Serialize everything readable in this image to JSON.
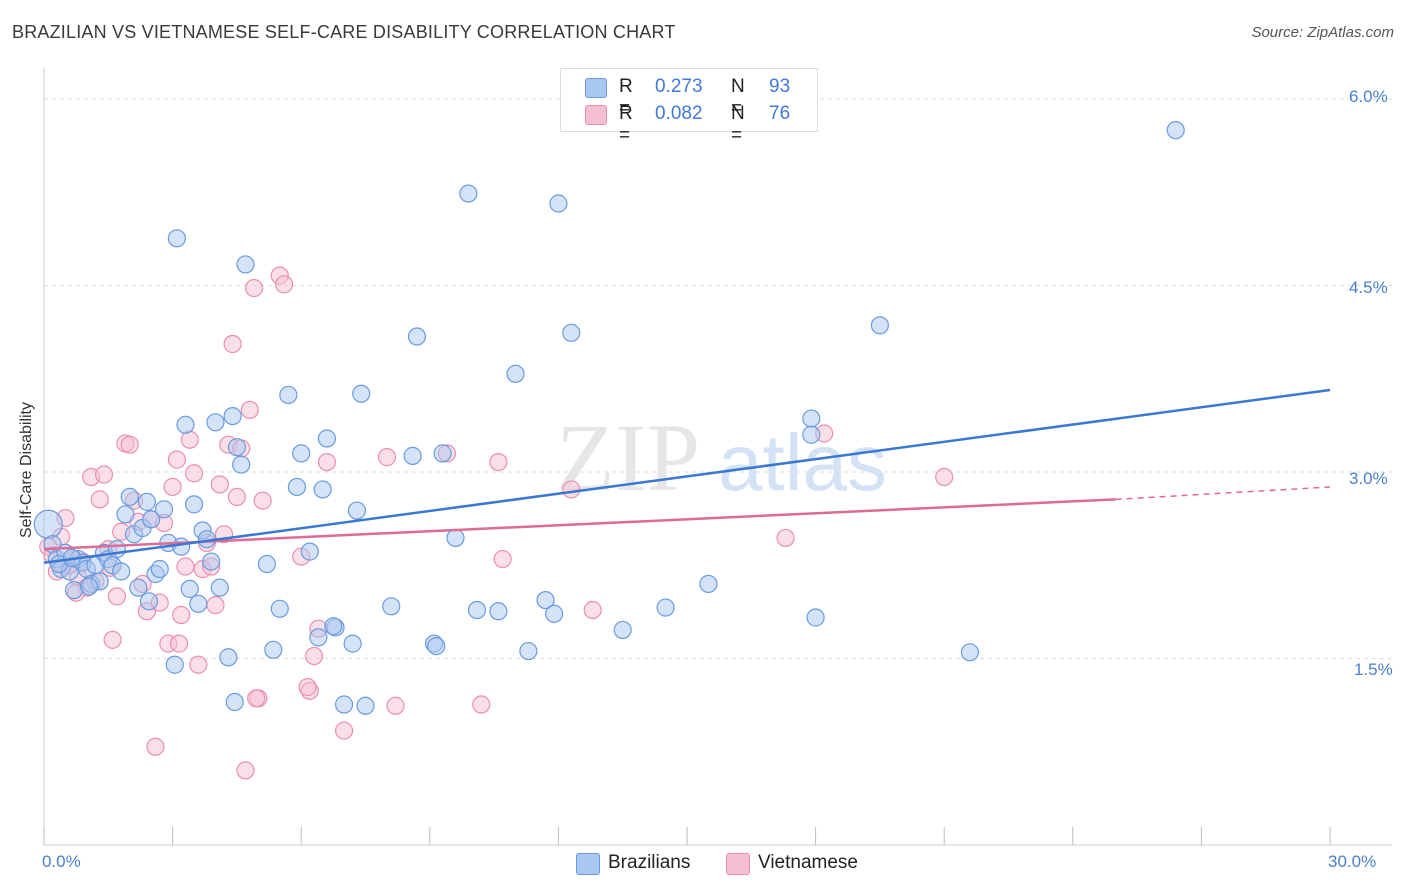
{
  "title": "BRAZILIAN VS VIETNAMESE SELF-CARE DISABILITY CORRELATION CHART",
  "source": "Source: ZipAtlas.com",
  "watermark": {
    "zip": "ZIP",
    "atlas": "atlas"
  },
  "legend": {
    "r_label": "R =",
    "n_label": "N =",
    "brazilians": {
      "r": "0.273",
      "n": "93"
    },
    "vietnamese": {
      "r": "0.082",
      "n": "76"
    }
  },
  "colors": {
    "blue_fill": "#a9c8f0",
    "blue_stroke": "#6a9be0",
    "blue_line": "#3a78d4",
    "pink_fill": "#f6bfd1",
    "pink_stroke": "#eb8fae",
    "pink_line": "#e06a96",
    "axis_text": "#4a7fd0",
    "grid": "#dddddd"
  },
  "chart_data": {
    "type": "scatter",
    "title": "BRAZILIAN VS VIETNAMESE SELF-CARE DISABILITY CORRELATION CHART",
    "xlabel": "",
    "ylabel": "Self-Care Disability",
    "xlim": [
      0,
      30
    ],
    "ylim": [
      0,
      6.25
    ],
    "x_tick_labels": [
      "0.0%",
      "30.0%"
    ],
    "y_ticks": [
      1.5,
      3.0,
      4.5,
      6.0
    ],
    "y_tick_labels": [
      "1.5%",
      "3.0%",
      "4.5%",
      "6.0%"
    ],
    "grid": "horizontal dashed",
    "legend_position": "top-center",
    "series": [
      {
        "name": "Brazilians",
        "r": 0.273,
        "n": 93,
        "trend": {
          "x0": 0,
          "y0": 2.27,
          "x1": 30,
          "y1": 3.66
        },
        "points": [
          [
            0.1,
            2.58
          ],
          [
            0.2,
            2.42
          ],
          [
            0.3,
            2.3
          ],
          [
            0.4,
            2.22
          ],
          [
            0.5,
            2.35
          ],
          [
            0.6,
            2.2
          ],
          [
            0.7,
            2.05
          ],
          [
            0.8,
            2.3
          ],
          [
            0.9,
            2.27
          ],
          [
            1.0,
            2.22
          ],
          [
            1.1,
            2.1
          ],
          [
            1.2,
            2.25
          ],
          [
            1.3,
            2.12
          ],
          [
            1.4,
            2.35
          ],
          [
            1.5,
            2.3
          ],
          [
            1.6,
            2.25
          ],
          [
            1.7,
            2.38
          ],
          [
            1.8,
            2.2
          ],
          [
            1.9,
            2.66
          ],
          [
            2.0,
            2.8
          ],
          [
            2.1,
            2.5
          ],
          [
            2.2,
            2.07
          ],
          [
            2.3,
            2.55
          ],
          [
            2.4,
            2.76
          ],
          [
            2.5,
            2.62
          ],
          [
            2.6,
            2.18
          ],
          [
            2.7,
            2.22
          ],
          [
            2.8,
            2.7
          ],
          [
            2.9,
            2.43
          ],
          [
            3.1,
            4.88
          ],
          [
            3.2,
            2.4
          ],
          [
            3.3,
            3.38
          ],
          [
            3.4,
            2.06
          ],
          [
            3.5,
            2.74
          ],
          [
            3.6,
            1.94
          ],
          [
            3.7,
            2.53
          ],
          [
            3.8,
            2.46
          ],
          [
            3.9,
            2.28
          ],
          [
            4.0,
            3.4
          ],
          [
            4.1,
            2.07
          ],
          [
            4.3,
            1.51
          ],
          [
            4.4,
            3.45
          ],
          [
            4.5,
            3.2
          ],
          [
            4.6,
            3.06
          ],
          [
            4.7,
            4.67
          ],
          [
            5.2,
            2.26
          ],
          [
            5.5,
            1.9
          ],
          [
            5.7,
            3.62
          ],
          [
            5.9,
            2.88
          ],
          [
            6.0,
            3.15
          ],
          [
            6.2,
            2.36
          ],
          [
            6.4,
            1.67
          ],
          [
            6.5,
            2.86
          ],
          [
            6.6,
            3.27
          ],
          [
            6.8,
            1.75
          ],
          [
            7.0,
            1.13
          ],
          [
            7.2,
            1.62
          ],
          [
            7.3,
            2.69
          ],
          [
            7.4,
            3.63
          ],
          [
            7.5,
            1.12
          ],
          [
            8.1,
            1.92
          ],
          [
            8.6,
            3.13
          ],
          [
            8.7,
            4.09
          ],
          [
            9.1,
            1.62
          ],
          [
            9.3,
            3.15
          ],
          [
            9.6,
            2.47
          ],
          [
            9.9,
            5.24
          ],
          [
            10.1,
            1.89
          ],
          [
            10.6,
            1.88
          ],
          [
            11.0,
            3.79
          ],
          [
            11.3,
            1.56
          ],
          [
            11.7,
            1.97
          ],
          [
            11.9,
            1.86
          ],
          [
            12.0,
            5.16
          ],
          [
            12.3,
            4.12
          ],
          [
            13.5,
            1.73
          ],
          [
            14.5,
            1.91
          ],
          [
            15.5,
            2.1
          ],
          [
            17.9,
            3.43
          ],
          [
            17.9,
            3.3
          ],
          [
            18.0,
            1.83
          ],
          [
            19.5,
            4.18
          ],
          [
            21.6,
            1.55
          ],
          [
            26.4,
            5.75
          ],
          [
            0.35,
            2.26
          ],
          [
            1.05,
            2.08
          ],
          [
            2.45,
            1.96
          ],
          [
            3.05,
            1.45
          ],
          [
            4.45,
            1.15
          ],
          [
            5.35,
            1.57
          ],
          [
            6.75,
            1.76
          ],
          [
            9.15,
            1.6
          ],
          [
            0.65,
            2.31
          ]
        ]
      },
      {
        "name": "Vietnamese",
        "r": 0.082,
        "n": 76,
        "trend": {
          "x0": 0,
          "y0": 2.38,
          "x1": 25,
          "y1": 2.78
        },
        "trend_dashed": {
          "x0": 25,
          "y0": 2.78,
          "x1": 30,
          "y1": 2.88
        },
        "points": [
          [
            0.1,
            2.4
          ],
          [
            0.2,
            2.33
          ],
          [
            0.3,
            2.2
          ],
          [
            0.4,
            2.48
          ],
          [
            0.5,
            2.63
          ],
          [
            0.6,
            2.25
          ],
          [
            0.7,
            2.3
          ],
          [
            0.8,
            2.15
          ],
          [
            0.9,
            2.28
          ],
          [
            1.0,
            2.07
          ],
          [
            1.1,
            2.96
          ],
          [
            1.2,
            2.12
          ],
          [
            1.3,
            2.78
          ],
          [
            1.4,
            2.98
          ],
          [
            1.5,
            2.38
          ],
          [
            1.6,
            1.65
          ],
          [
            1.7,
            2.0
          ],
          [
            1.8,
            2.52
          ],
          [
            1.9,
            3.23
          ],
          [
            2.0,
            3.22
          ],
          [
            2.1,
            2.77
          ],
          [
            2.2,
            2.6
          ],
          [
            2.3,
            2.1
          ],
          [
            2.4,
            1.88
          ],
          [
            2.5,
            2.62
          ],
          [
            2.6,
            0.79
          ],
          [
            2.7,
            1.95
          ],
          [
            2.8,
            2.59
          ],
          [
            2.9,
            1.62
          ],
          [
            3.0,
            2.88
          ],
          [
            3.1,
            3.1
          ],
          [
            3.2,
            1.85
          ],
          [
            3.3,
            2.24
          ],
          [
            3.4,
            3.26
          ],
          [
            3.5,
            2.99
          ],
          [
            3.6,
            1.45
          ],
          [
            3.7,
            2.22
          ],
          [
            3.8,
            2.43
          ],
          [
            3.9,
            2.24
          ],
          [
            4.0,
            1.93
          ],
          [
            4.1,
            2.9
          ],
          [
            4.2,
            2.5
          ],
          [
            4.3,
            3.22
          ],
          [
            4.4,
            4.03
          ],
          [
            4.5,
            2.8
          ],
          [
            4.6,
            3.19
          ],
          [
            4.7,
            0.6
          ],
          [
            4.8,
            3.5
          ],
          [
            4.9,
            4.48
          ],
          [
            5.0,
            1.18
          ],
          [
            5.1,
            2.77
          ],
          [
            5.5,
            4.58
          ],
          [
            5.6,
            4.51
          ],
          [
            6.0,
            2.32
          ],
          [
            6.2,
            1.24
          ],
          [
            6.3,
            1.52
          ],
          [
            6.4,
            1.74
          ],
          [
            6.6,
            3.08
          ],
          [
            7.0,
            0.92
          ],
          [
            8.0,
            3.12
          ],
          [
            8.2,
            1.12
          ],
          [
            9.4,
            3.15
          ],
          [
            10.2,
            1.13
          ],
          [
            10.6,
            3.08
          ],
          [
            10.7,
            2.3
          ],
          [
            12.3,
            2.86
          ],
          [
            12.8,
            1.89
          ],
          [
            17.3,
            2.47
          ],
          [
            18.2,
            3.31
          ],
          [
            21.0,
            2.96
          ],
          [
            0.75,
            2.03
          ],
          [
            1.55,
            2.23
          ],
          [
            3.15,
            1.62
          ],
          [
            6.15,
            1.27
          ],
          [
            4.95,
            1.18
          ],
          [
            0.45,
            2.25
          ]
        ]
      }
    ]
  }
}
